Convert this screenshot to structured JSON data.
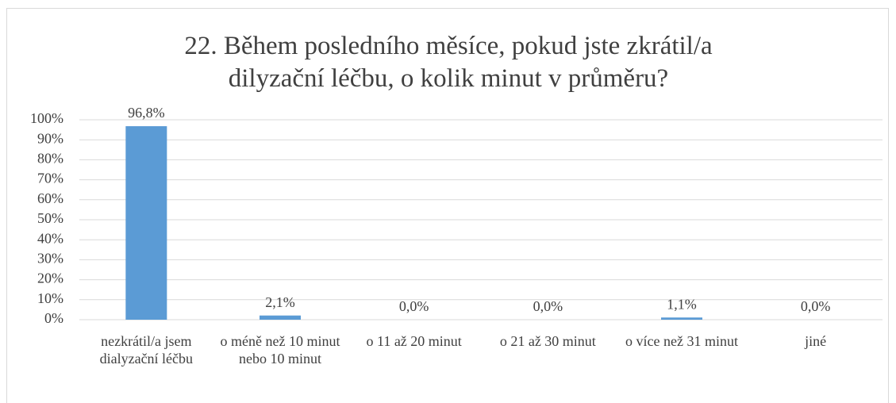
{
  "chart_data": {
    "type": "bar",
    "title": "22. Během posledního měsíce, pokud jste zkrátil/a dilyzační léčbu, o kolik minut v průměru?",
    "categories": [
      "nezkrátil/a jsem dialyzační léčbu",
      "o méně než 10 minut nebo 10 minut",
      "o 11 až 20 minut",
      "o 21 až 30 minut",
      "o více než 31 minut",
      "jiné"
    ],
    "values": [
      96.8,
      2.1,
      0,
      0,
      1.1,
      0
    ],
    "value_labels": [
      "96,8%",
      "2,1%",
      "0,0%",
      "0,0%",
      "1,1%",
      "0,0%"
    ],
    "color": "#5b9bd5",
    "ylim": [
      0,
      100
    ],
    "yticks": [
      {
        "value": 0,
        "label": "0%"
      },
      {
        "value": 10,
        "label": "10%"
      },
      {
        "value": 20,
        "label": "20%"
      },
      {
        "value": 30,
        "label": "30%"
      },
      {
        "value": 40,
        "label": "40%"
      },
      {
        "value": 50,
        "label": "50%"
      },
      {
        "value": 60,
        "label": "60%"
      },
      {
        "value": 70,
        "label": "70%"
      },
      {
        "value": 80,
        "label": "80%"
      },
      {
        "value": 90,
        "label": "90%"
      },
      {
        "value": 100,
        "label": "100%"
      }
    ],
    "grid": true
  }
}
